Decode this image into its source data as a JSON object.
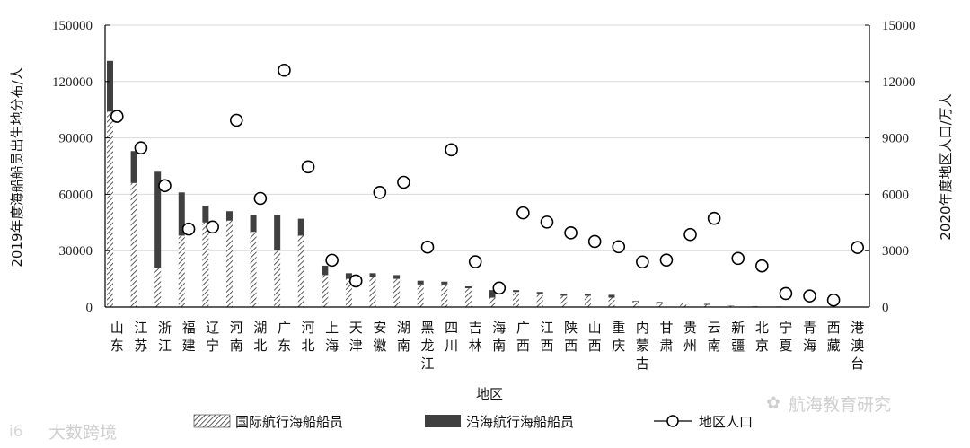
{
  "chart_data": {
    "type": "bar",
    "stacked": true,
    "ylabel": "2019年度海船船员出生地分布/人",
    "y2label": "2020年度地区人口/万人",
    "xlabel": "地区",
    "ylim": [
      0,
      150000
    ],
    "y2lim": [
      0,
      15000
    ],
    "yticks": [
      "0",
      "30000",
      "60000",
      "90000",
      "120000",
      "150000"
    ],
    "y2ticks": [
      "0",
      "3000",
      "6000",
      "9000",
      "12000",
      "15000"
    ],
    "grid": true,
    "legend_position": "bottom",
    "categories": [
      "山东",
      "江苏",
      "浙江",
      "福建",
      "辽宁",
      "河南",
      "湖北",
      "广东",
      "河北",
      "上海",
      "天津",
      "安徽",
      "湖南",
      "黑龙江",
      "四川",
      "吉林",
      "海南",
      "广西",
      "江西",
      "陕西",
      "山西",
      "重庆",
      "内蒙古",
      "甘肃",
      "贵州",
      "云南",
      "新疆",
      "北京",
      "宁夏",
      "青海",
      "西藏",
      "港澳台"
    ],
    "series": [
      {
        "name": "国际航行海船船员",
        "axis": "left",
        "kind": "bar",
        "pattern": "hatch",
        "values": [
          104000,
          66000,
          21000,
          38000,
          45000,
          46000,
          40000,
          30000,
          38000,
          17000,
          15000,
          16000,
          15000,
          12000,
          12000,
          10000,
          5000,
          8000,
          7000,
          6000,
          6000,
          5000,
          3000,
          2500,
          2000,
          1200,
          600,
          400,
          200,
          150,
          100,
          0
        ]
      },
      {
        "name": "沿海航行海船船员",
        "axis": "left",
        "kind": "bar",
        "pattern": "solid",
        "values": [
          27000,
          17000,
          51000,
          23000,
          9000,
          5000,
          9000,
          19000,
          9000,
          5000,
          3000,
          2000,
          2000,
          2000,
          1500,
          1000,
          4000,
          1000,
          1000,
          1000,
          1000,
          1500,
          300,
          300,
          200,
          500,
          200,
          100,
          100,
          50,
          50,
          0
        ]
      },
      {
        "name": "地区人口",
        "axis": "right",
        "kind": "marker",
        "values": [
          10150,
          8470,
          6460,
          4150,
          4260,
          9940,
          5780,
          12600,
          7460,
          2490,
          1390,
          6100,
          6640,
          3190,
          8370,
          2410,
          1010,
          5010,
          4520,
          3950,
          3490,
          3210,
          2400,
          2500,
          3860,
          4720,
          2590,
          2190,
          720,
          590,
          370,
          3170
        ]
      }
    ]
  },
  "watermarks": {
    "left": "大数跨境",
    "left_logo": "i6",
    "right": "航海教育研究"
  },
  "colors": {
    "axis": "#000000",
    "grid": "#d9d9d9",
    "solid": "#404040",
    "hatch": "#333333",
    "marker_fill": "#ffffff"
  }
}
